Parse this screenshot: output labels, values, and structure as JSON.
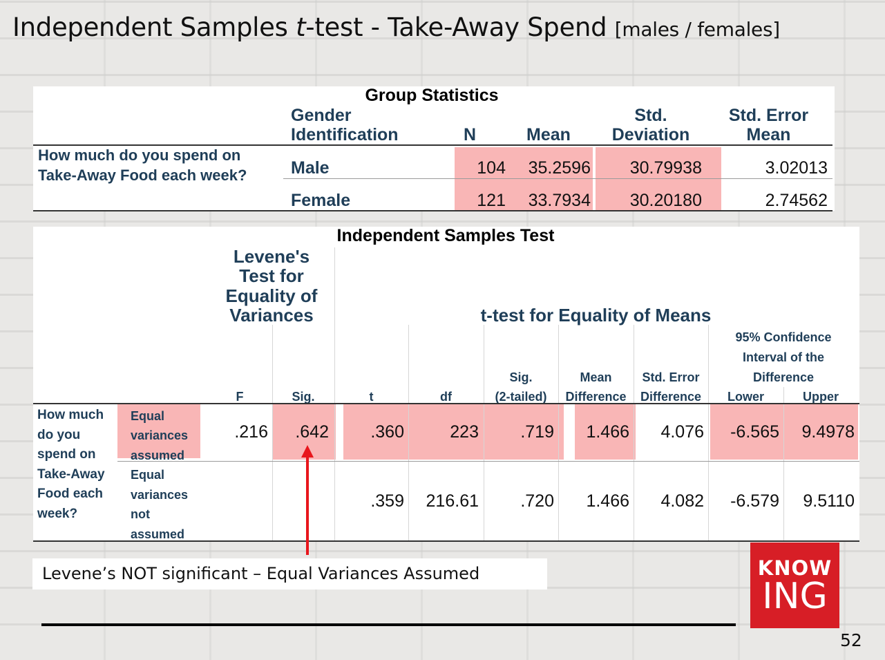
{
  "slide": {
    "title_main": "Independent Samples ",
    "title_italic": "t",
    "title_rest": "-test - Take-Away Spend ",
    "title_bracket": "[males / females]",
    "page_number": "52"
  },
  "group_statistics": {
    "title": "Group Statistics",
    "headers": {
      "group_l1": "Gender",
      "group_l2": "Identification",
      "n": "N",
      "mean": "Mean",
      "sd_l1": "Std.",
      "sd_l2": "Deviation",
      "se_l1": "Std. Error",
      "se_l2": "Mean"
    },
    "question_l1": "How much do you spend on",
    "question_l2": "Take-Away Food each week?",
    "rows": [
      {
        "group": "Male",
        "n": "104",
        "mean": "35.2596",
        "sd": "30.79938",
        "se": "3.02013"
      },
      {
        "group": "Female",
        "n": "121",
        "mean": "33.7934",
        "sd": "30.20180",
        "se": "2.74562"
      }
    ]
  },
  "independent_test": {
    "title": "Independent Samples Test",
    "levene_l1": "Levene's",
    "levene_l2": "Test for",
    "levene_l3": "Equality of",
    "levene_l4": "Variances",
    "ttest_header": "t-test for Equality of Means",
    "ci_l1": "95% Confidence",
    "ci_l2": "Interval of the",
    "ci_l3": "Difference",
    "col": {
      "f": "F",
      "sig": "Sig.",
      "t": "t",
      "df": "df",
      "sig2_l1": "Sig.",
      "sig2_l2": "(2-tailed)",
      "md_l1": "Mean",
      "md_l2": "Difference",
      "sed_l1": "Std. Error",
      "sed_l2": "Difference",
      "lower": "Lower",
      "upper": "Upper"
    },
    "question_lines": [
      "How much",
      "do you",
      "spend on",
      "Take-Away",
      "Food each",
      "week?"
    ],
    "rows": [
      {
        "label_lines": [
          "Equal",
          "variances",
          "assumed"
        ],
        "f": ".216",
        "sig": ".642",
        "t": ".360",
        "df": "223",
        "sig2": ".719",
        "md": "1.466",
        "sed": "4.076",
        "lower": "-6.565",
        "upper": "9.4978"
      },
      {
        "label_lines": [
          "Equal",
          "variances",
          "not",
          "assumed"
        ],
        "f": "",
        "sig": "",
        "t": ".359",
        "df": "216.61",
        "sig2": ".720",
        "md": "1.466",
        "sed": "4.082",
        "lower": "-6.579",
        "upper": "9.5110"
      }
    ]
  },
  "note": "Levene’s NOT significant – Equal Variances Assumed",
  "logo": {
    "top": "KNOW",
    "bottom": "ING"
  },
  "colors": {
    "highlight": "#f8aeae",
    "arrow": "#e8161c",
    "header_text": "#1f3e58",
    "logo_bg": "#d71e26"
  }
}
